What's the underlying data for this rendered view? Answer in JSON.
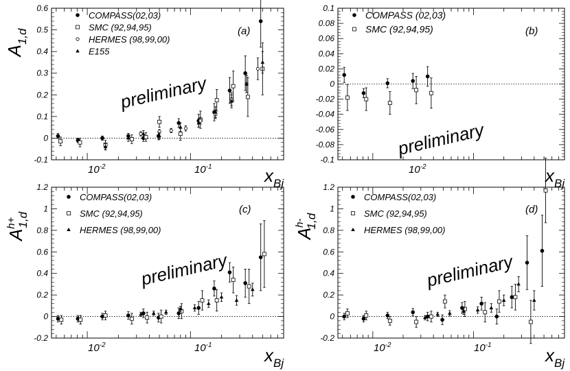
{
  "figure": {
    "x_label_main": "x",
    "x_label_sub": "Bj",
    "prelim": "preliminary"
  },
  "chart_data": [
    {
      "type": "scatter",
      "panel_label": "(a)",
      "y_label_main": "A",
      "y_label_sub": "1,d",
      "y_label_sup": "",
      "x_scale": "log",
      "xlim": [
        0.0045,
        0.8
      ],
      "ylim": [
        -0.1,
        0.6
      ],
      "y_ticks": [
        -0.1,
        0,
        0.1,
        0.2,
        0.3,
        0.4,
        0.5,
        0.6
      ],
      "y_tick_labels": [
        "-0.1",
        "0",
        "0.1",
        "0.2",
        "0.3",
        "0.4",
        "0.5",
        "0.6"
      ],
      "x_tick_labels": [
        {
          "base": "10",
          "exp": "-2"
        },
        {
          "base": "10",
          "exp": "-1"
        }
      ],
      "legend_position": "top-left",
      "series": [
        {
          "name": "COMPASS(02,03)",
          "marker": "filled-circle",
          "x": [
            0.0052,
            0.0081,
            0.014,
            0.025,
            0.035,
            0.049,
            0.077,
            0.12,
            0.17,
            0.24,
            0.34,
            0.48
          ],
          "y": [
            0.01,
            -0.01,
            0.0,
            0.01,
            0.0,
            0.01,
            0.07,
            0.08,
            0.12,
            0.22,
            0.3,
            0.54
          ],
          "err": [
            0.012,
            0.01,
            0.01,
            0.012,
            0.015,
            0.018,
            0.02,
            0.03,
            0.04,
            0.06,
            0.08,
            0.12
          ]
        },
        {
          "name": "SMC (92,94,95)",
          "marker": "open-square",
          "x": [
            0.0055,
            0.0085,
            0.015,
            0.027,
            0.037,
            0.05,
            0.08,
            0.125,
            0.18,
            0.26,
            0.36,
            0.5
          ],
          "y": [
            -0.015,
            -0.02,
            -0.03,
            -0.005,
            0.005,
            0.075,
            0.02,
            0.085,
            0.175,
            0.24,
            0.19,
            0.32
          ],
          "err": [
            0.02,
            0.02,
            0.02,
            0.02,
            0.02,
            0.025,
            0.03,
            0.04,
            0.05,
            0.07,
            0.09,
            0.12
          ]
        },
        {
          "name": "HERMES (98,99,00)",
          "marker": "open-circle",
          "x": [
            0.033,
            0.05,
            0.065,
            0.09,
            0.125,
            0.175,
            0.25,
            0.35,
            0.45
          ],
          "y": [
            0.02,
            0.03,
            0.035,
            0.045,
            0.08,
            0.11,
            0.18,
            0.25,
            0.32
          ],
          "err": [
            0.01,
            0.01,
            0.01,
            0.012,
            0.015,
            0.02,
            0.03,
            0.04,
            0.05
          ]
        },
        {
          "name": "E155",
          "marker": "filled-triangle",
          "x": [
            0.015,
            0.025,
            0.035,
            0.05,
            0.08,
            0.12,
            0.175,
            0.25,
            0.35,
            0.5
          ],
          "y": [
            -0.04,
            0.0,
            0.02,
            0.01,
            0.05,
            0.07,
            0.12,
            0.17,
            0.25,
            0.35
          ],
          "err": [
            0.015,
            0.015,
            0.015,
            0.015,
            0.02,
            0.02,
            0.025,
            0.03,
            0.04,
            0.05
          ]
        }
      ]
    },
    {
      "type": "scatter",
      "panel_label": "(b)",
      "y_label_main": "",
      "y_label_sub": "",
      "y_label_sup": "",
      "x_scale": "log",
      "xlim": [
        0.0045,
        0.8
      ],
      "ylim": [
        -0.1,
        0.1
      ],
      "y_ticks": [
        -0.1,
        -0.08,
        -0.06,
        -0.04,
        -0.02,
        0,
        0.02,
        0.04,
        0.06,
        0.08,
        0.1
      ],
      "y_tick_labels": [
        "-0.1",
        "-0.08",
        "-0.06",
        "-0.04",
        "-0.02",
        "0",
        "0.02",
        "0.04",
        "0.06",
        "0.08",
        "0.1"
      ],
      "x_tick_labels": [
        {
          "base": "10",
          "exp": "-2"
        }
      ],
      "legend_position": "top-left",
      "series": [
        {
          "name": "COMPASS (02,03)",
          "marker": "filled-circle",
          "x": [
            0.0052,
            0.0081,
            0.014,
            0.025,
            0.035
          ],
          "y": [
            0.012,
            -0.012,
            0.001,
            0.004,
            0.01
          ],
          "err": [
            0.01,
            0.006,
            0.006,
            0.01,
            0.013
          ]
        },
        {
          "name": "SMC (92,94,95)",
          "marker": "open-square",
          "x": [
            0.0056,
            0.0086,
            0.0148,
            0.027,
            0.038
          ],
          "y": [
            -0.018,
            -0.02,
            -0.025,
            -0.008,
            -0.012
          ],
          "err": [
            0.017,
            0.015,
            0.015,
            0.018,
            0.02
          ]
        }
      ]
    },
    {
      "type": "scatter",
      "panel_label": "(c)",
      "y_label_main": "A",
      "y_label_sub": "1,d",
      "y_label_sup": "h+",
      "x_scale": "log",
      "xlim": [
        0.0045,
        0.8
      ],
      "ylim": [
        -0.2,
        1.2
      ],
      "y_ticks": [
        -0.2,
        0,
        0.2,
        0.4,
        0.6,
        0.8,
        1,
        1.2
      ],
      "y_tick_labels": [
        "-0.2",
        "0",
        "0.2",
        "0.4",
        "0.6",
        "0.8",
        "1",
        "1.2"
      ],
      "x_tick_labels": [
        {
          "base": "10",
          "exp": "-2"
        },
        {
          "base": "10",
          "exp": "-1"
        }
      ],
      "legend_position": "top-left",
      "series": [
        {
          "name": "COMPASS(02,03)",
          "marker": "filled-circle",
          "x": [
            0.0052,
            0.0081,
            0.014,
            0.025,
            0.035,
            0.049,
            0.077,
            0.12,
            0.17,
            0.24,
            0.34,
            0.48
          ],
          "y": [
            -0.02,
            -0.02,
            0.0,
            0.01,
            0.03,
            -0.01,
            0.03,
            0.08,
            0.26,
            0.41,
            0.31,
            0.55
          ],
          "err": [
            0.03,
            0.03,
            0.03,
            0.035,
            0.04,
            0.04,
            0.05,
            0.06,
            0.07,
            0.09,
            0.13,
            0.31
          ]
        },
        {
          "name": "SMC (92,94,95)",
          "marker": "open-square",
          "x": [
            0.0056,
            0.0086,
            0.015,
            0.027,
            0.038,
            0.052,
            0.082,
            0.13,
            0.18,
            0.26,
            0.37,
            0.52
          ],
          "y": [
            -0.03,
            -0.03,
            0.01,
            -0.02,
            -0.01,
            0.0,
            0.05,
            0.15,
            0.15,
            0.34,
            0.28,
            0.58
          ],
          "err": [
            0.04,
            0.04,
            0.04,
            0.05,
            0.05,
            0.06,
            0.07,
            0.09,
            0.1,
            0.12,
            0.16,
            0.31
          ]
        },
        {
          "name": "HERMES (98,99,00)",
          "marker": "filled-triangle",
          "x": [
            0.033,
            0.044,
            0.058,
            0.08,
            0.11,
            0.15,
            0.2,
            0.28,
            0.4
          ],
          "y": [
            0.02,
            0.03,
            0.04,
            0.07,
            0.08,
            0.12,
            0.18,
            0.15,
            0.25
          ],
          "err": [
            0.02,
            0.02,
            0.02,
            0.025,
            0.03,
            0.035,
            0.04,
            0.045,
            0.06
          ]
        }
      ]
    },
    {
      "type": "scatter",
      "panel_label": "(d)",
      "y_label_main": "A",
      "y_label_sub": "1,d",
      "y_label_sup": "h-",
      "x_scale": "log",
      "xlim": [
        0.0045,
        0.8
      ],
      "ylim": [
        -0.2,
        1.2
      ],
      "y_ticks": [
        -0.2,
        0,
        0.2,
        0.4,
        0.6,
        0.8,
        1,
        1.2
      ],
      "y_tick_labels": [
        "-0.2",
        "0",
        "0.2",
        "0.4",
        "0.6",
        "0.8",
        "1",
        "1.2"
      ],
      "x_tick_labels": [
        {
          "base": "10",
          "exp": "-2"
        },
        {
          "base": "10",
          "exp": "-1"
        }
      ],
      "legend_position": "top-left",
      "series": [
        {
          "name": "COMPASS(02,03)",
          "marker": "filled-circle",
          "x": [
            0.0052,
            0.0081,
            0.014,
            0.025,
            0.035,
            0.049,
            0.077,
            0.12,
            0.17,
            0.24,
            0.34,
            0.48
          ],
          "y": [
            0.0,
            -0.02,
            0.01,
            0.04,
            0.0,
            -0.03,
            0.08,
            0.12,
            0.0,
            0.18,
            0.5,
            0.61
          ],
          "err": [
            0.03,
            0.03,
            0.03,
            0.035,
            0.04,
            0.045,
            0.05,
            0.06,
            0.07,
            0.1,
            0.25,
            0.33
          ]
        },
        {
          "name": "SMC (92,94,95)",
          "marker": "open-square",
          "x": [
            0.0056,
            0.0086,
            0.0148,
            0.027,
            0.038,
            0.052,
            0.082,
            0.13,
            0.18,
            0.26,
            0.37,
            0.52
          ],
          "y": [
            0.03,
            0.01,
            -0.04,
            -0.05,
            0.0,
            0.14,
            0.07,
            0.04,
            0.14,
            0.18,
            -0.05,
            1.17
          ],
          "err": [
            0.04,
            0.04,
            0.04,
            0.05,
            0.05,
            0.06,
            0.07,
            0.09,
            0.1,
            0.12,
            0.2,
            0.3
          ]
        },
        {
          "name": "HERMES (98,99,00)",
          "marker": "filled-triangle",
          "x": [
            0.033,
            0.044,
            0.058,
            0.08,
            0.11,
            0.15,
            0.2,
            0.28,
            0.4
          ],
          "y": [
            -0.01,
            0.02,
            0.03,
            0.05,
            0.06,
            0.08,
            0.15,
            0.3,
            0.15
          ],
          "err": [
            0.02,
            0.02,
            0.025,
            0.03,
            0.03,
            0.04,
            0.05,
            0.07,
            0.09
          ]
        }
      ]
    }
  ]
}
